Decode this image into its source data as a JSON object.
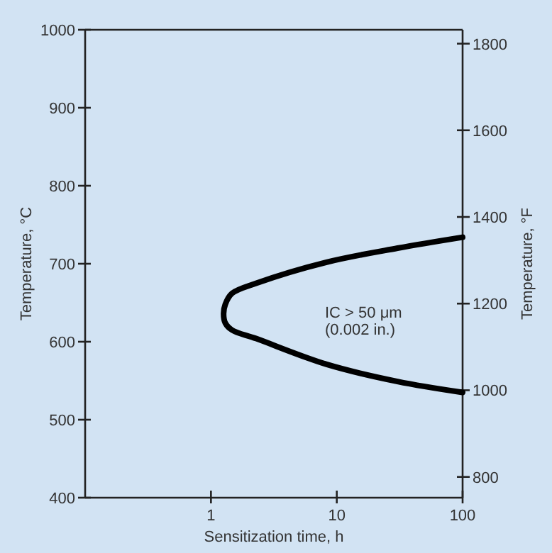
{
  "chart_data": {
    "type": "line",
    "xlabel": "Sensitization time, h",
    "ylabel": "Temperature, °C",
    "y2label": "Temperature, °F",
    "log": "x",
    "xlim": [
      0.1,
      100
    ],
    "xticks": [
      1,
      10,
      100
    ],
    "ylim": [
      400,
      1000
    ],
    "yticks": [
      400,
      500,
      600,
      700,
      800,
      900,
      1000
    ],
    "y2lim": [
      752,
      1832
    ],
    "y2ticks": [
      800,
      1000,
      1200,
      1400,
      1600,
      1800
    ],
    "grid": false,
    "marker": "none",
    "line_style": "solid",
    "series": [
      {
        "color": "#000000",
        "x": [
          100,
          30.4,
          8.3,
          2.29,
          1.47,
          1.3,
          1.26,
          1.3,
          1.47,
          2.29,
          8.3,
          30.4,
          100
        ],
        "values": [
          734,
          720,
          702,
          675,
          662,
          648,
          636,
          624,
          615,
          604,
          571,
          549,
          535
        ]
      }
    ],
    "annotations": [
      "IC > 50 μm",
      "(0.002 in.)"
    ]
  }
}
